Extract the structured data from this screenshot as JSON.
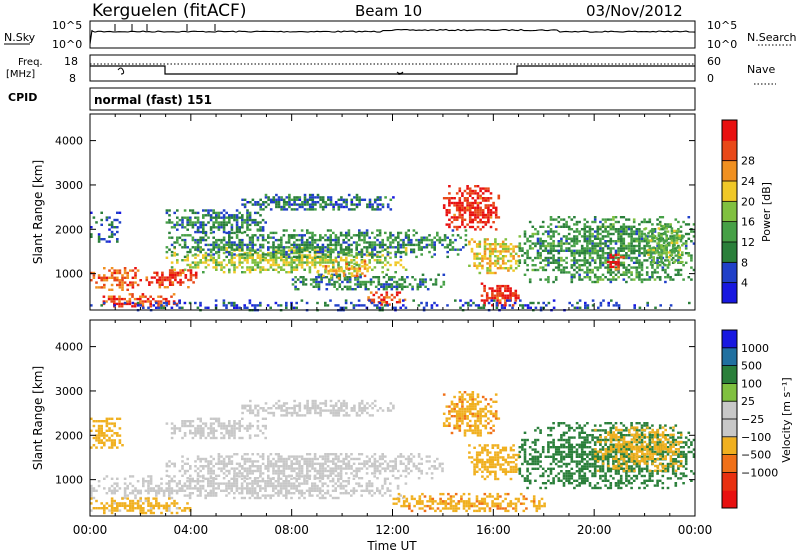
{
  "header": {
    "station": "Kerguelen (fitACF)",
    "beam": "Beam 10",
    "date": "03/Nov/2012"
  },
  "strip_sky": {
    "left_label": "N.Sky",
    "right_label": "N.Search",
    "tick_top": "10^5",
    "tick_bottom": "10^0"
  },
  "strip_freq": {
    "left_label_1": "Freq.",
    "left_label_2": "[MHz]",
    "tick_top": "18",
    "tick_bottom": "8",
    "right_label": "Nave",
    "right_tick_top": "60",
    "right_tick_bottom": "0"
  },
  "strip_cpid": {
    "left_label": "CPID",
    "mode": "normal (fast) 151"
  },
  "time_axis": {
    "title": "Time UT",
    "ticks": [
      "00:00",
      "04:00",
      "08:00",
      "12:00",
      "16:00",
      "20:00",
      "00:00"
    ]
  },
  "colors": {
    "power_scale": [
      "#1818e0",
      "#2040c8",
      "#2a7f3a",
      "#46a046",
      "#80c040",
      "#f0c828",
      "#f09020",
      "#e84818",
      "#e81010"
    ],
    "velocity_scale": [
      "#1818e0",
      "#2070a0",
      "#2a7f3a",
      "#80c040",
      "#c8c8c8",
      "#c8c8c8",
      "#f0b020",
      "#f07018",
      "#e83010",
      "#e81010"
    ]
  },
  "chart_data": [
    {
      "type": "heatmap",
      "title": "Power",
      "xlabel": "Time UT",
      "ylabel": "Slant Range [km]",
      "x_ticks": [
        "00:00",
        "04:00",
        "08:00",
        "12:00",
        "16:00",
        "20:00",
        "00:00"
      ],
      "y_ticks": [
        "1000",
        "2000",
        "3000",
        "4000"
      ],
      "ylim": [
        180,
        4600
      ],
      "xlim_hours": [
        0,
        24
      ],
      "colorbar": {
        "label": "Power [dB]",
        "ticks": [
          "4",
          "8",
          "12",
          "16",
          "20",
          "24",
          "28"
        ],
        "range": [
          0,
          30
        ]
      },
      "features": [
        {
          "t0": 0.0,
          "t1": 1.3,
          "r0": 1700,
          "r1": 2400,
          "value": 6
        },
        {
          "t0": 0.0,
          "t1": 2.0,
          "r0": 650,
          "r1": 1150,
          "value": 24
        },
        {
          "t0": 0.5,
          "t1": 3.5,
          "r0": 280,
          "r1": 560,
          "value": 25
        },
        {
          "t0": 2.2,
          "t1": 4.2,
          "r0": 700,
          "r1": 1100,
          "value": 26
        },
        {
          "t0": 3.0,
          "t1": 12.5,
          "r0": 1050,
          "r1": 1600,
          "value": 16
        },
        {
          "t0": 3.0,
          "t1": 7.0,
          "r0": 1950,
          "r1": 2450,
          "value": 8
        },
        {
          "t0": 3.0,
          "t1": 15.0,
          "r0": 1400,
          "r1": 2000,
          "value": 9
        },
        {
          "t0": 6.0,
          "t1": 12.0,
          "r0": 2450,
          "r1": 2800,
          "value": 7
        },
        {
          "t0": 8.0,
          "t1": 14.0,
          "r0": 650,
          "r1": 1000,
          "value": 9
        },
        {
          "t0": 9.0,
          "t1": 11.0,
          "r0": 900,
          "r1": 1300,
          "value": 20
        },
        {
          "t0": 11.0,
          "t1": 12.5,
          "r0": 300,
          "r1": 600,
          "value": 25
        },
        {
          "t0": 14.0,
          "t1": 16.2,
          "r0": 2000,
          "r1": 3000,
          "value": 27
        },
        {
          "t0": 15.0,
          "t1": 17.0,
          "r0": 1000,
          "r1": 1800,
          "value": 18
        },
        {
          "t0": 15.5,
          "t1": 17.0,
          "r0": 280,
          "r1": 800,
          "value": 27
        },
        {
          "t0": 17.0,
          "t1": 24.0,
          "r0": 800,
          "r1": 2300,
          "value": 10
        },
        {
          "t0": 20.5,
          "t1": 21.2,
          "r0": 1100,
          "r1": 1450,
          "value": 26
        },
        {
          "t0": 22.0,
          "t1": 23.5,
          "r0": 1200,
          "r1": 2100,
          "value": 14
        },
        {
          "t0": 0.0,
          "t1": 24.0,
          "r0": 200,
          "r1": 420,
          "value": 5
        }
      ]
    },
    {
      "type": "heatmap",
      "title": "Velocity",
      "xlabel": "Time UT",
      "ylabel": "Slant Range [km]",
      "x_ticks": [
        "00:00",
        "04:00",
        "08:00",
        "12:00",
        "16:00",
        "20:00",
        "00:00"
      ],
      "y_ticks": [
        "1000",
        "2000",
        "3000",
        "4000"
      ],
      "ylim": [
        180,
        4600
      ],
      "xlim_hours": [
        0,
        24
      ],
      "colorbar": {
        "label": "Velocity [m s⁻¹]",
        "ticks": [
          "1000",
          "500",
          "100",
          "25",
          "−25",
          "−100",
          "−500",
          "−1000"
        ]
      },
      "features": [
        {
          "t0": 0.0,
          "t1": 1.3,
          "r0": 1700,
          "r1": 2400,
          "value": -300
        },
        {
          "t0": 0.0,
          "t1": 12.5,
          "r0": 600,
          "r1": 1100,
          "value": 0
        },
        {
          "t0": 0.0,
          "t1": 4.0,
          "r0": 250,
          "r1": 600,
          "value": -150
        },
        {
          "t0": 3.0,
          "t1": 14.0,
          "r0": 1050,
          "r1": 1600,
          "value": 0
        },
        {
          "t0": 3.0,
          "t1": 7.0,
          "r0": 1950,
          "r1": 2400,
          "value": 0
        },
        {
          "t0": 6.0,
          "t1": 12.0,
          "r0": 2450,
          "r1": 2800,
          "value": -60
        },
        {
          "t0": 14.0,
          "t1": 16.2,
          "r0": 2000,
          "r1": 3000,
          "value": -400
        },
        {
          "t0": 15.0,
          "t1": 17.0,
          "r0": 1000,
          "r1": 1800,
          "value": -300
        },
        {
          "t0": 17.0,
          "t1": 24.0,
          "r0": 800,
          "r1": 2300,
          "value": 200
        },
        {
          "t0": 20.0,
          "t1": 23.5,
          "r0": 1200,
          "r1": 2200,
          "value": -200
        },
        {
          "t0": 12.0,
          "t1": 18.0,
          "r0": 280,
          "r1": 700,
          "value": -400
        }
      ]
    }
  ]
}
